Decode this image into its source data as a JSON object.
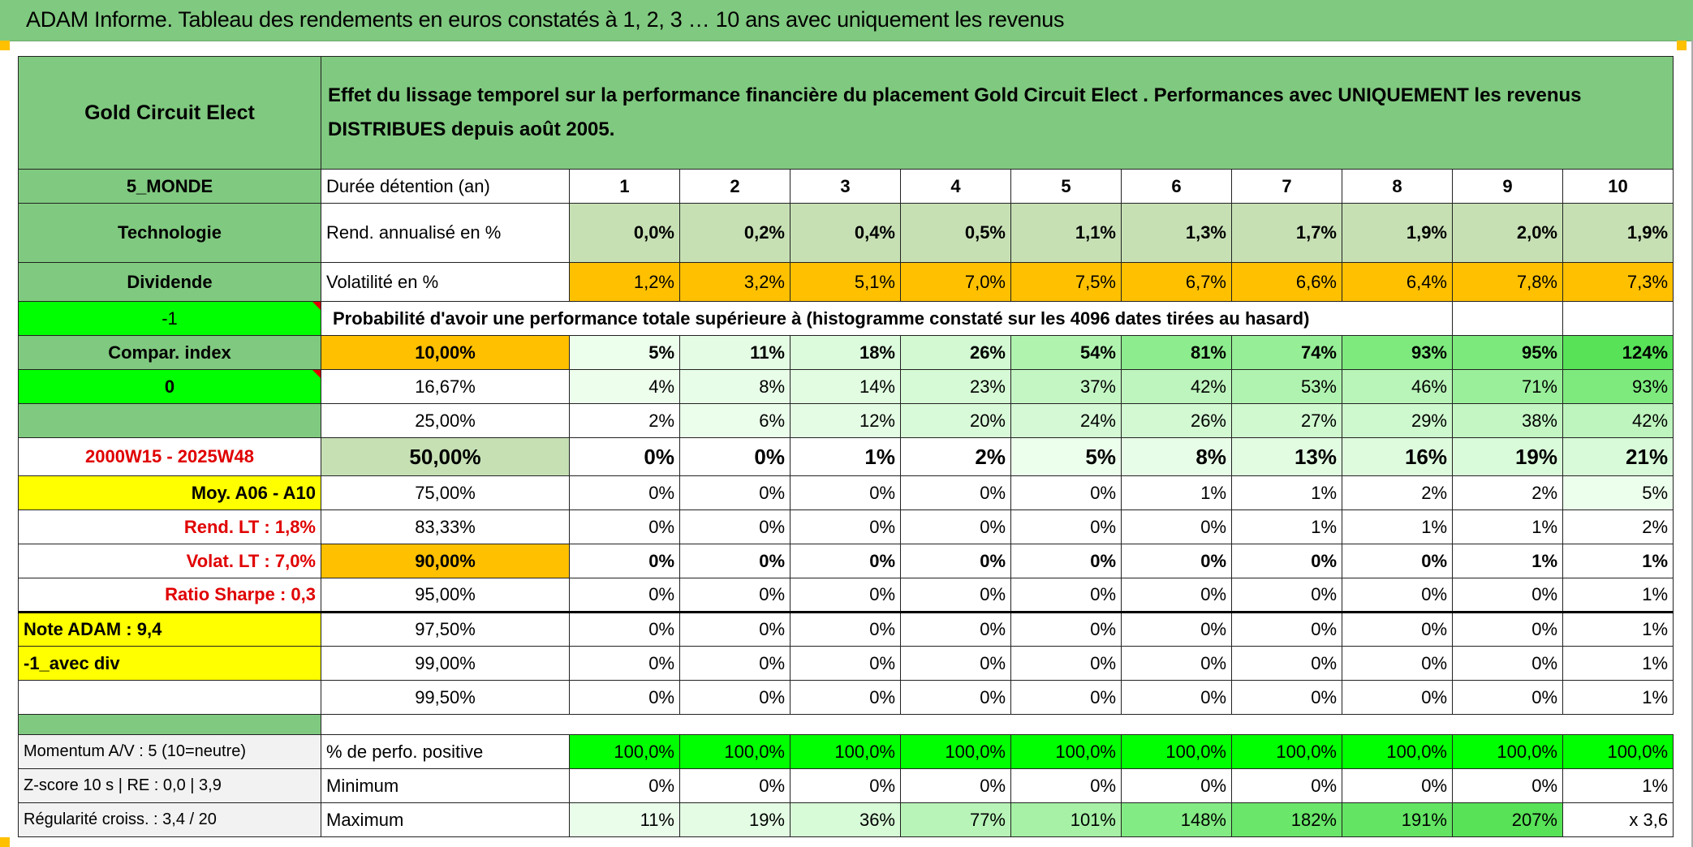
{
  "title": "ADAM Informe. Tableau des rendements en euros constatés à 1, 2, 3 … 10 ans avec uniquement les revenus",
  "header": {
    "fund_name": "Gold Circuit Elect",
    "description": "Effet du lissage temporel sur la performance financière du placement Gold Circuit Elect . Performances avec UNIQUEMENT les revenus DISTRIBUES depuis août 2005."
  },
  "colors": {
    "green": "#80c980",
    "bright_green": "#00ff00",
    "orange": "#ffc000",
    "yellow": "#ffff00",
    "light_green": "#c6e0b4",
    "red_text": "#e00000"
  },
  "durations": {
    "label": "Durée détention (an)",
    "values": [
      "1",
      "2",
      "3",
      "4",
      "5",
      "6",
      "7",
      "8",
      "9",
      "10"
    ]
  },
  "rend": {
    "label": "Rend. annualisé en %",
    "values": [
      "0,0%",
      "0,2%",
      "0,4%",
      "0,5%",
      "1,1%",
      "1,3%",
      "1,7%",
      "1,9%",
      "2,0%",
      "1,9%"
    ]
  },
  "volat": {
    "label": "Volatilité en %",
    "values": [
      "1,2%",
      "3,2%",
      "5,1%",
      "7,0%",
      "7,5%",
      "6,7%",
      "6,6%",
      "6,4%",
      "7,8%",
      "7,3%"
    ]
  },
  "probability_label": "Probabilité d'avoir une performance totale supérieure à (histogramme constaté sur les 4096 dates tirées au hasard)",
  "left": {
    "region": "5_MONDE",
    "sector": "Technologie",
    "type": "Dividende",
    "value_a": "-1",
    "compar": "Compar. index",
    "value_b": "0",
    "period": "2000W15 - 2025W48",
    "moy": "Moy. A06 - A10",
    "rend_lt": "Rend. LT :   1,8%",
    "volat_lt": "Volat. LT :   7,0%",
    "sharpe": "Ratio Sharpe :    0,3",
    "note": "Note ADAM : 9,4",
    "avec_div": "-1_avec div"
  },
  "prob_rows": [
    {
      "threshold": "10,00%",
      "values": [
        "5%",
        "11%",
        "18%",
        "26%",
        "54%",
        "81%",
        "74%",
        "93%",
        "95%",
        "124%"
      ]
    },
    {
      "threshold": "16,67%",
      "values": [
        "4%",
        "8%",
        "14%",
        "23%",
        "37%",
        "42%",
        "53%",
        "46%",
        "71%",
        "93%"
      ]
    },
    {
      "threshold": "25,00%",
      "values": [
        "2%",
        "6%",
        "12%",
        "20%",
        "24%",
        "26%",
        "27%",
        "29%",
        "38%",
        "42%"
      ]
    },
    {
      "threshold": "50,00%",
      "values": [
        "0%",
        "0%",
        "1%",
        "2%",
        "5%",
        "8%",
        "13%",
        "16%",
        "19%",
        "21%"
      ]
    },
    {
      "threshold": "75,00%",
      "values": [
        "0%",
        "0%",
        "0%",
        "0%",
        "0%",
        "1%",
        "1%",
        "2%",
        "2%",
        "5%"
      ]
    },
    {
      "threshold": "83,33%",
      "values": [
        "0%",
        "0%",
        "0%",
        "0%",
        "0%",
        "0%",
        "1%",
        "1%",
        "1%",
        "2%"
      ]
    },
    {
      "threshold": "90,00%",
      "values": [
        "0%",
        "0%",
        "0%",
        "0%",
        "0%",
        "0%",
        "0%",
        "0%",
        "1%",
        "1%"
      ]
    },
    {
      "threshold": "95,00%",
      "values": [
        "0%",
        "0%",
        "0%",
        "0%",
        "0%",
        "0%",
        "0%",
        "0%",
        "0%",
        "1%"
      ]
    },
    {
      "threshold": "97,50%",
      "values": [
        "0%",
        "0%",
        "0%",
        "0%",
        "0%",
        "0%",
        "0%",
        "0%",
        "0%",
        "1%"
      ]
    },
    {
      "threshold": "99,00%",
      "values": [
        "0%",
        "0%",
        "0%",
        "0%",
        "0%",
        "0%",
        "0%",
        "0%",
        "0%",
        "1%"
      ]
    },
    {
      "threshold": "99,50%",
      "values": [
        "0%",
        "0%",
        "0%",
        "0%",
        "0%",
        "0%",
        "0%",
        "0%",
        "0%",
        "1%"
      ]
    }
  ],
  "bottom": {
    "momentum": "Momentum A/V : 5 (10=neutre)",
    "zscore": "Z-score 10 s | RE : 0,0 | 3,9",
    "regularite": "Régularité croiss. : 3,4 / 20",
    "positive": {
      "label": "% de perfo. positive",
      "values": [
        "100,0%",
        "100,0%",
        "100,0%",
        "100,0%",
        "100,0%",
        "100,0%",
        "100,0%",
        "100,0%",
        "100,0%",
        "100,0%"
      ]
    },
    "minimum": {
      "label": "Minimum",
      "values": [
        "0%",
        "0%",
        "0%",
        "0%",
        "0%",
        "0%",
        "0%",
        "0%",
        "0%",
        "1%"
      ]
    },
    "maximum": {
      "label": "Maximum",
      "values": [
        "11%",
        "19%",
        "36%",
        "77%",
        "101%",
        "148%",
        "182%",
        "191%",
        "207%",
        "x 3,6"
      ]
    }
  }
}
